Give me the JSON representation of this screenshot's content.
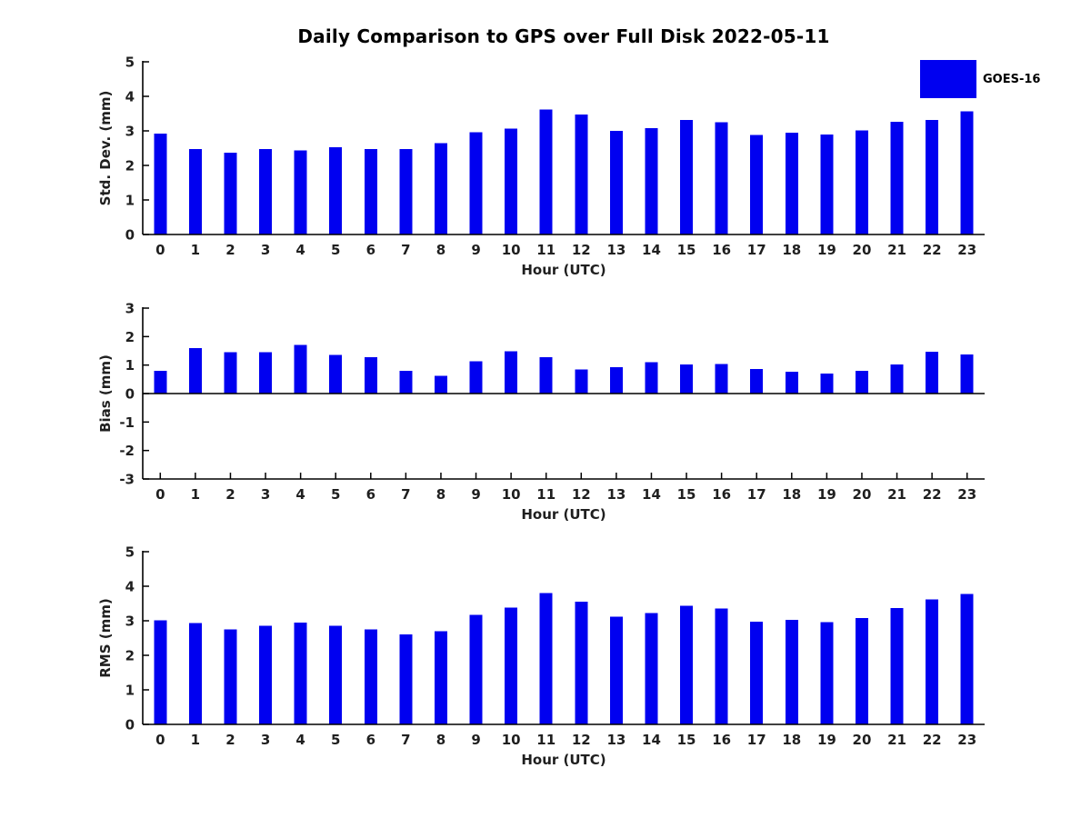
{
  "title": "Daily Comparison to GPS over Full Disk 2022-05-11",
  "legend": {
    "label": "GOES-16",
    "color": "#0000f0"
  },
  "colors": {
    "bar": "#0000f0",
    "axis": "#000000",
    "text": "#1f1f1f",
    "background": "#ffffff"
  },
  "chart_data": [
    {
      "type": "bar",
      "ylabel": "Std. Dev. (mm)",
      "xlabel": "Hour (UTC)",
      "ylim": [
        0,
        5
      ],
      "yticks": [
        0,
        1,
        2,
        3,
        4,
        5
      ],
      "grid": false,
      "legend_position": "upper-right-outside",
      "categories": [
        "0",
        "1",
        "2",
        "3",
        "4",
        "5",
        "6",
        "7",
        "8",
        "9",
        "10",
        "11",
        "12",
        "13",
        "14",
        "15",
        "16",
        "17",
        "18",
        "19",
        "20",
        "21",
        "22",
        "23"
      ],
      "values": [
        2.92,
        2.48,
        2.37,
        2.48,
        2.43,
        2.53,
        2.48,
        2.48,
        2.65,
        2.96,
        3.07,
        3.62,
        3.48,
        3.0,
        3.08,
        3.32,
        3.25,
        2.88,
        2.95,
        2.89,
        3.01,
        3.26,
        3.32,
        3.56
      ]
    },
    {
      "type": "bar",
      "ylabel": "Bias (mm)",
      "xlabel": "Hour (UTC)",
      "ylim": [
        -3,
        3
      ],
      "yticks": [
        -3,
        -2,
        -1,
        0,
        1,
        2,
        3
      ],
      "grid": false,
      "categories": [
        "0",
        "1",
        "2",
        "3",
        "4",
        "5",
        "6",
        "7",
        "8",
        "9",
        "10",
        "11",
        "12",
        "13",
        "14",
        "15",
        "16",
        "17",
        "18",
        "19",
        "20",
        "21",
        "22",
        "23"
      ],
      "values": [
        0.8,
        1.6,
        1.45,
        1.45,
        1.7,
        1.36,
        1.27,
        0.8,
        0.62,
        1.13,
        1.48,
        1.27,
        0.85,
        0.92,
        1.1,
        1.02,
        1.03,
        0.86,
        0.77,
        0.7,
        0.8,
        1.02,
        1.47,
        1.37
      ]
    },
    {
      "type": "bar",
      "ylabel": "RMS (mm)",
      "xlabel": "Hour (UTC)",
      "ylim": [
        0,
        5
      ],
      "yticks": [
        0,
        1,
        2,
        3,
        4,
        5
      ],
      "grid": false,
      "categories": [
        "0",
        "1",
        "2",
        "3",
        "4",
        "5",
        "6",
        "7",
        "8",
        "9",
        "10",
        "11",
        "12",
        "13",
        "14",
        "15",
        "16",
        "17",
        "18",
        "19",
        "20",
        "21",
        "22",
        "23"
      ],
      "values": [
        3.01,
        2.93,
        2.75,
        2.86,
        2.95,
        2.86,
        2.75,
        2.6,
        2.7,
        3.17,
        3.38,
        3.8,
        3.55,
        3.12,
        3.23,
        3.43,
        3.36,
        2.97,
        3.02,
        2.96,
        3.08,
        3.37,
        3.62,
        3.78
      ]
    }
  ]
}
